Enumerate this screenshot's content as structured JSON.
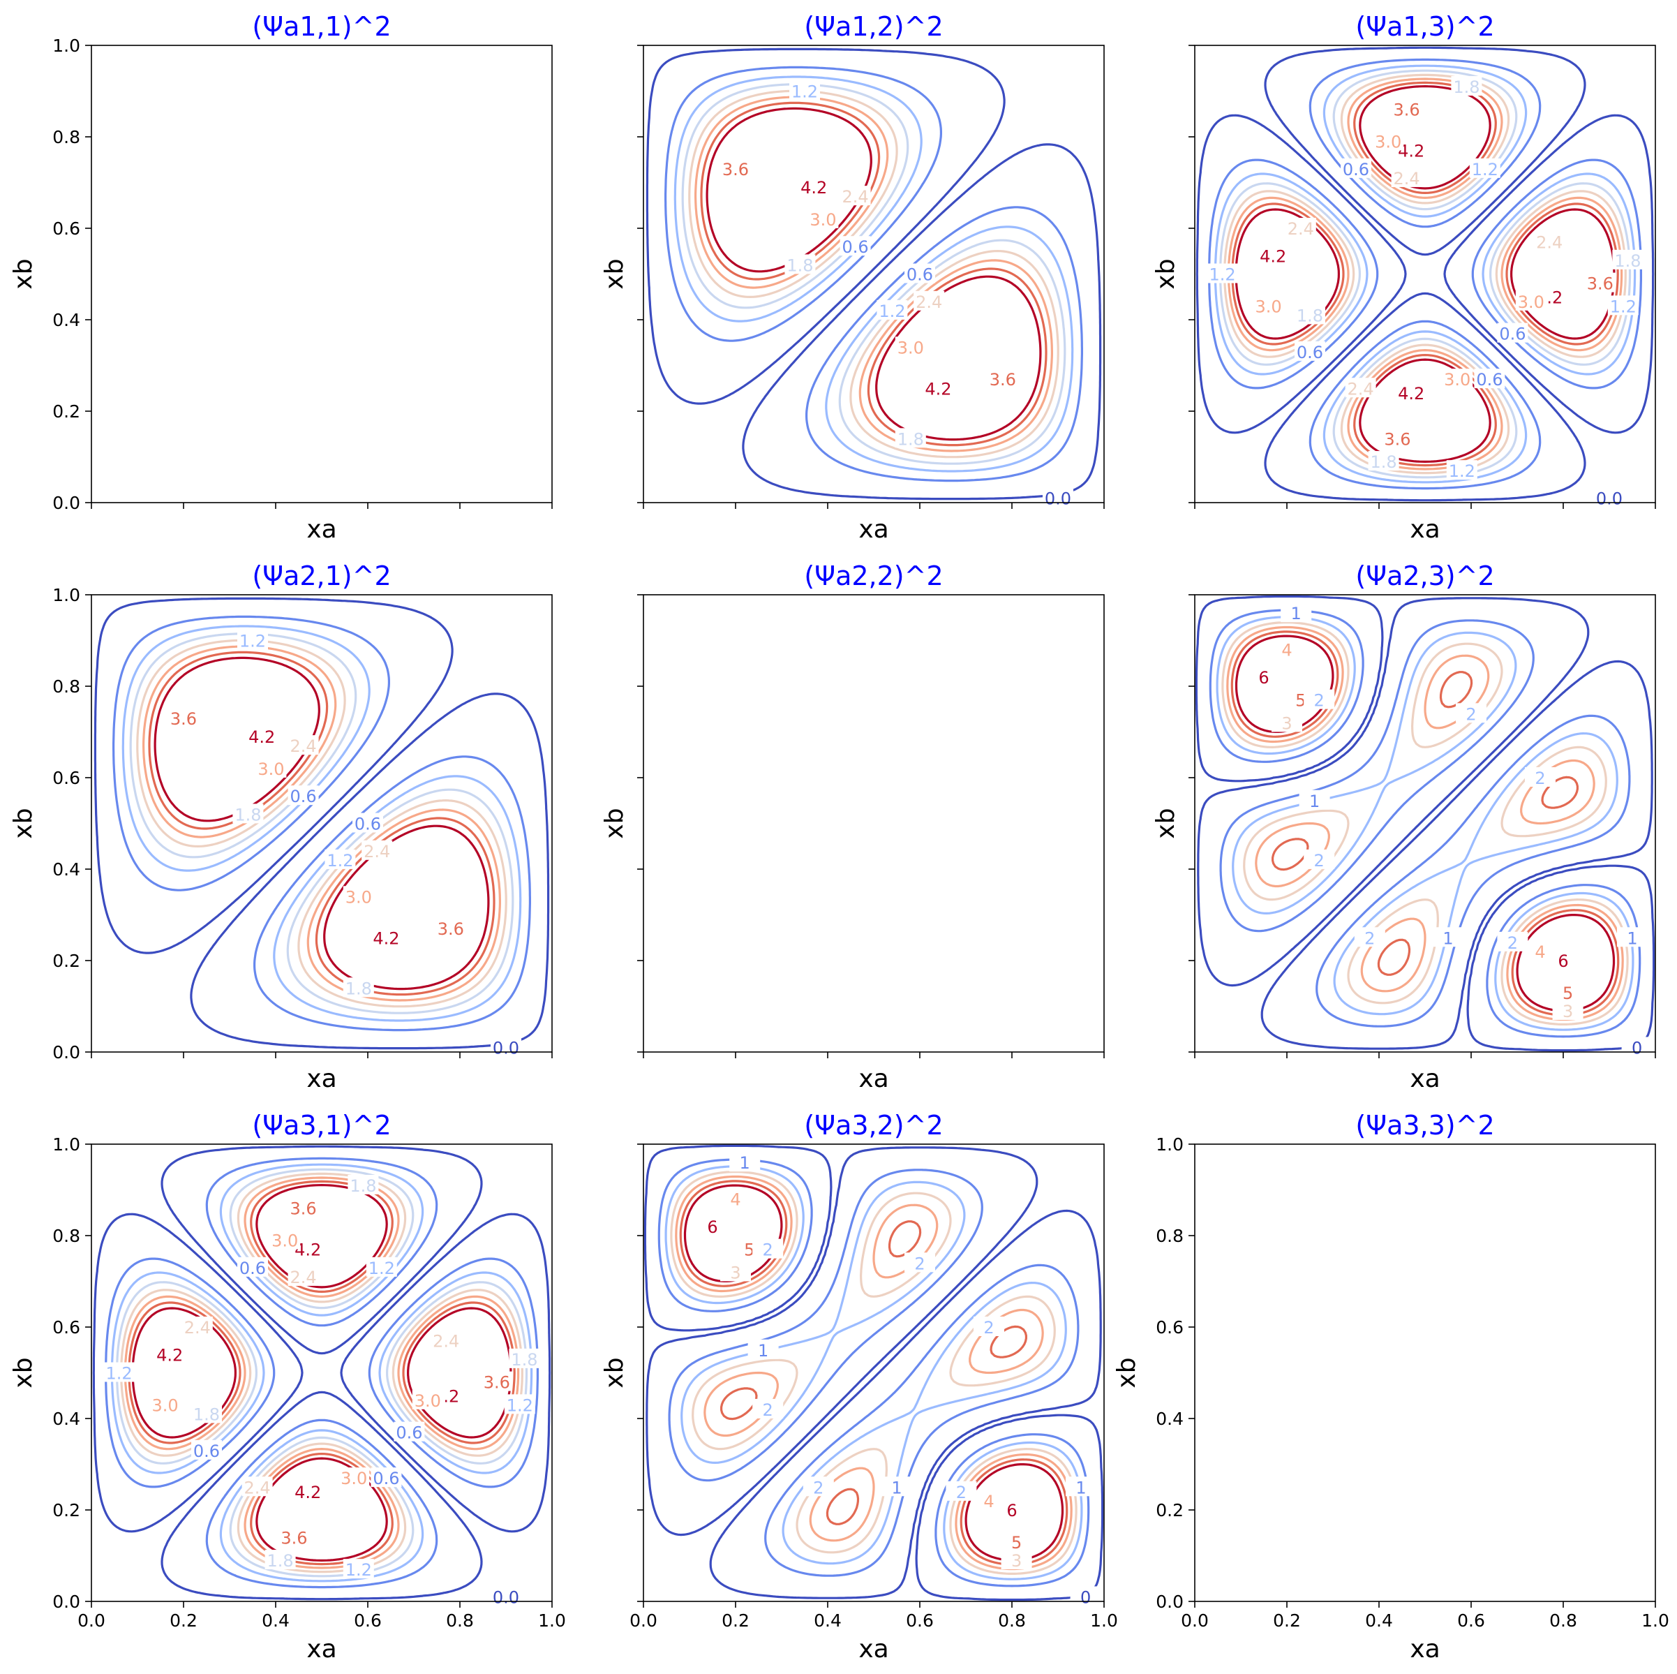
{
  "colors": {
    "title": "#0000ff",
    "level_palette": [
      "#3b4cc0",
      "#6788ee",
      "#9abbff",
      "#c9d7f0",
      "#edd1c2",
      "#f7a889",
      "#e26952",
      "#b40426"
    ]
  },
  "chart_data": [
    {
      "type": "contour",
      "title": "(Ψa1,1)^2",
      "xlabel": "xa",
      "ylabel": "xb",
      "xlim": [
        0,
        1
      ],
      "ylim": [
        0,
        1
      ],
      "xticks": [
        "0.0",
        "0.2",
        "0.4",
        "0.6",
        "0.8",
        "1.0"
      ],
      "yticks": [
        "0.0",
        "0.2",
        "0.4",
        "0.6",
        "0.8",
        "1.0"
      ],
      "show_xticklabels": false,
      "show_yticklabels": true,
      "pair": [
        1,
        1
      ],
      "levels": [],
      "labels": []
    },
    {
      "type": "contour",
      "title": "(Ψa1,2)^2",
      "xlabel": "xa",
      "ylabel": "xb",
      "xlim": [
        0,
        1
      ],
      "ylim": [
        0,
        1
      ],
      "xticks": [
        "0.0",
        "0.2",
        "0.4",
        "0.6",
        "0.8",
        "1.0"
      ],
      "yticks": [
        "0.0",
        "0.2",
        "0.4",
        "0.6",
        "0.8",
        "1.0"
      ],
      "show_xticklabels": false,
      "show_yticklabels": false,
      "pair": [
        1,
        2
      ],
      "levels": [
        0.0,
        0.6,
        1.2,
        1.8,
        2.4,
        3.0,
        3.6,
        4.2
      ],
      "labels": [
        {
          "text": "1.2",
          "x": 0.35,
          "y": 0.9,
          "level": 1.2
        },
        {
          "text": "3.6",
          "x": 0.2,
          "y": 0.73,
          "level": 3.6
        },
        {
          "text": "4.2",
          "x": 0.37,
          "y": 0.69,
          "level": 4.2
        },
        {
          "text": "3.0",
          "x": 0.39,
          "y": 0.62,
          "level": 3.0
        },
        {
          "text": "2.4",
          "x": 0.46,
          "y": 0.67,
          "level": 2.4
        },
        {
          "text": "1.8",
          "x": 0.34,
          "y": 0.52,
          "level": 1.8
        },
        {
          "text": "0.6",
          "x": 0.46,
          "y": 0.56,
          "level": 0.6
        },
        {
          "text": "0.6",
          "x": 0.6,
          "y": 0.5,
          "level": 0.6
        },
        {
          "text": "1.2",
          "x": 0.54,
          "y": 0.42,
          "level": 1.2
        },
        {
          "text": "2.4",
          "x": 0.62,
          "y": 0.44,
          "level": 2.4
        },
        {
          "text": "3.0",
          "x": 0.58,
          "y": 0.34,
          "level": 3.0
        },
        {
          "text": "4.2",
          "x": 0.64,
          "y": 0.25,
          "level": 4.2
        },
        {
          "text": "3.6",
          "x": 0.78,
          "y": 0.27,
          "level": 3.6
        },
        {
          "text": "1.8",
          "x": 0.58,
          "y": 0.14,
          "level": 1.8
        },
        {
          "text": "0.0",
          "x": 0.9,
          "y": 0.01,
          "level": 0.0
        }
      ]
    },
    {
      "type": "contour",
      "title": "(Ψa1,3)^2",
      "xlabel": "xa",
      "ylabel": "xb",
      "xlim": [
        0,
        1
      ],
      "ylim": [
        0,
        1
      ],
      "xticks": [
        "0.0",
        "0.2",
        "0.4",
        "0.6",
        "0.8",
        "1.0"
      ],
      "yticks": [
        "0.0",
        "0.2",
        "0.4",
        "0.6",
        "0.8",
        "1.0"
      ],
      "show_xticklabels": false,
      "show_yticklabels": false,
      "pair": [
        1,
        3
      ],
      "levels": [
        0.0,
        0.6,
        1.2,
        1.8,
        2.4,
        3.0,
        3.6,
        4.2
      ],
      "labels": [
        {
          "text": "1.8",
          "x": 0.59,
          "y": 0.91,
          "level": 1.8
        },
        {
          "text": "3.6",
          "x": 0.46,
          "y": 0.86,
          "level": 3.6
        },
        {
          "text": "4.2",
          "x": 0.47,
          "y": 0.77,
          "level": 4.2
        },
        {
          "text": "3.0",
          "x": 0.42,
          "y": 0.79,
          "level": 3.0
        },
        {
          "text": "2.4",
          "x": 0.46,
          "y": 0.71,
          "level": 2.4
        },
        {
          "text": "1.2",
          "x": 0.63,
          "y": 0.73,
          "level": 1.2
        },
        {
          "text": "0.6",
          "x": 0.35,
          "y": 0.73,
          "level": 0.6
        },
        {
          "text": "1.2",
          "x": 0.06,
          "y": 0.5,
          "level": 1.2
        },
        {
          "text": "4.2",
          "x": 0.17,
          "y": 0.54,
          "level": 4.2
        },
        {
          "text": "2.4",
          "x": 0.23,
          "y": 0.6,
          "level": 2.4
        },
        {
          "text": "3.0",
          "x": 0.16,
          "y": 0.43,
          "level": 3.0
        },
        {
          "text": "1.8",
          "x": 0.25,
          "y": 0.41,
          "level": 1.8
        },
        {
          "text": "0.6",
          "x": 0.25,
          "y": 0.33,
          "level": 0.6
        },
        {
          "text": "2.4",
          "x": 0.77,
          "y": 0.57,
          "level": 2.4
        },
        {
          "text": "3.6",
          "x": 0.88,
          "y": 0.48,
          "level": 3.6
        },
        {
          "text": "4.2",
          "x": 0.77,
          "y": 0.45,
          "level": 4.2
        },
        {
          "text": "3.0",
          "x": 0.73,
          "y": 0.44,
          "level": 3.0
        },
        {
          "text": "1.8",
          "x": 0.94,
          "y": 0.53,
          "level": 1.8
        },
        {
          "text": "1.2",
          "x": 0.93,
          "y": 0.43,
          "level": 1.2
        },
        {
          "text": "0.6",
          "x": 0.69,
          "y": 0.37,
          "level": 0.6
        },
        {
          "text": "0.6",
          "x": 0.64,
          "y": 0.27,
          "level": 0.6
        },
        {
          "text": "3.0",
          "x": 0.57,
          "y": 0.27,
          "level": 3.0
        },
        {
          "text": "2.4",
          "x": 0.36,
          "y": 0.25,
          "level": 2.4
        },
        {
          "text": "4.2",
          "x": 0.47,
          "y": 0.24,
          "level": 4.2
        },
        {
          "text": "3.6",
          "x": 0.44,
          "y": 0.14,
          "level": 3.6
        },
        {
          "text": "1.8",
          "x": 0.41,
          "y": 0.09,
          "level": 1.8
        },
        {
          "text": "1.2",
          "x": 0.58,
          "y": 0.07,
          "level": 1.2
        },
        {
          "text": "0.0",
          "x": 0.9,
          "y": 0.01,
          "level": 0.0
        }
      ]
    },
    {
      "type": "contour",
      "title": "(Ψa2,1)^2",
      "xlabel": "xa",
      "ylabel": "xb",
      "xlim": [
        0,
        1
      ],
      "ylim": [
        0,
        1
      ],
      "xticks": [
        "0.0",
        "0.2",
        "0.4",
        "0.6",
        "0.8",
        "1.0"
      ],
      "yticks": [
        "0.0",
        "0.2",
        "0.4",
        "0.6",
        "0.8",
        "1.0"
      ],
      "show_xticklabels": false,
      "show_yticklabels": true,
      "pair": [
        2,
        1
      ],
      "levels": [
        0.0,
        0.6,
        1.2,
        1.8,
        2.4,
        3.0,
        3.6,
        4.2
      ],
      "labels": [
        {
          "text": "1.2",
          "x": 0.35,
          "y": 0.9,
          "level": 1.2
        },
        {
          "text": "3.6",
          "x": 0.2,
          "y": 0.73,
          "level": 3.6
        },
        {
          "text": "4.2",
          "x": 0.37,
          "y": 0.69,
          "level": 4.2
        },
        {
          "text": "3.0",
          "x": 0.39,
          "y": 0.62,
          "level": 3.0
        },
        {
          "text": "2.4",
          "x": 0.46,
          "y": 0.67,
          "level": 2.4
        },
        {
          "text": "1.8",
          "x": 0.34,
          "y": 0.52,
          "level": 1.8
        },
        {
          "text": "0.6",
          "x": 0.46,
          "y": 0.56,
          "level": 0.6
        },
        {
          "text": "0.6",
          "x": 0.6,
          "y": 0.5,
          "level": 0.6
        },
        {
          "text": "1.2",
          "x": 0.54,
          "y": 0.42,
          "level": 1.2
        },
        {
          "text": "2.4",
          "x": 0.62,
          "y": 0.44,
          "level": 2.4
        },
        {
          "text": "3.0",
          "x": 0.58,
          "y": 0.34,
          "level": 3.0
        },
        {
          "text": "4.2",
          "x": 0.64,
          "y": 0.25,
          "level": 4.2
        },
        {
          "text": "3.6",
          "x": 0.78,
          "y": 0.27,
          "level": 3.6
        },
        {
          "text": "1.8",
          "x": 0.58,
          "y": 0.14,
          "level": 1.8
        },
        {
          "text": "0.0",
          "x": 0.9,
          "y": 0.01,
          "level": 0.0
        }
      ]
    },
    {
      "type": "contour",
      "title": "(Ψa2,2)^2",
      "xlabel": "xa",
      "ylabel": "xb",
      "xlim": [
        0,
        1
      ],
      "ylim": [
        0,
        1
      ],
      "xticks": [
        "0.0",
        "0.2",
        "0.4",
        "0.6",
        "0.8",
        "1.0"
      ],
      "yticks": [
        "0.0",
        "0.2",
        "0.4",
        "0.6",
        "0.8",
        "1.0"
      ],
      "show_xticklabels": false,
      "show_yticklabels": false,
      "pair": [
        2,
        2
      ],
      "levels": [],
      "labels": []
    },
    {
      "type": "contour",
      "title": "(Ψa2,3)^2",
      "xlabel": "xa",
      "ylabel": "xb",
      "xlim": [
        0,
        1
      ],
      "ylim": [
        0,
        1
      ],
      "xticks": [
        "0.0",
        "0.2",
        "0.4",
        "0.6",
        "0.8",
        "1.0"
      ],
      "yticks": [
        "0.0",
        "0.2",
        "0.4",
        "0.6",
        "0.8",
        "1.0"
      ],
      "show_xticklabels": false,
      "show_yticklabels": false,
      "pair": [
        2,
        3
      ],
      "levels": [
        0,
        1,
        2,
        3,
        4,
        5,
        6
      ],
      "labels": [
        {
          "text": "1",
          "x": 0.22,
          "y": 0.96,
          "level": 1
        },
        {
          "text": "4",
          "x": 0.2,
          "y": 0.88,
          "level": 4
        },
        {
          "text": "6",
          "x": 0.15,
          "y": 0.82,
          "level": 6
        },
        {
          "text": "5",
          "x": 0.23,
          "y": 0.77,
          "level": 5
        },
        {
          "text": "3",
          "x": 0.2,
          "y": 0.72,
          "level": 3
        },
        {
          "text": "2",
          "x": 0.27,
          "y": 0.77,
          "level": 2
        },
        {
          "text": "2",
          "x": 0.6,
          "y": 0.74,
          "level": 2
        },
        {
          "text": "1",
          "x": 0.26,
          "y": 0.55,
          "level": 1
        },
        {
          "text": "2",
          "x": 0.27,
          "y": 0.42,
          "level": 2
        },
        {
          "text": "2",
          "x": 0.75,
          "y": 0.6,
          "level": 2
        },
        {
          "text": "2",
          "x": 0.38,
          "y": 0.25,
          "level": 2
        },
        {
          "text": "1",
          "x": 0.55,
          "y": 0.25,
          "level": 1
        },
        {
          "text": "2",
          "x": 0.69,
          "y": 0.24,
          "level": 2
        },
        {
          "text": "4",
          "x": 0.75,
          "y": 0.22,
          "level": 4
        },
        {
          "text": "6",
          "x": 0.8,
          "y": 0.2,
          "level": 6
        },
        {
          "text": "5",
          "x": 0.81,
          "y": 0.13,
          "level": 5
        },
        {
          "text": "3",
          "x": 0.81,
          "y": 0.09,
          "level": 3
        },
        {
          "text": "1",
          "x": 0.95,
          "y": 0.25,
          "level": 1
        },
        {
          "text": "0",
          "x": 0.96,
          "y": 0.01,
          "level": 0
        }
      ]
    },
    {
      "type": "contour",
      "title": "(Ψa3,1)^2",
      "xlabel": "xa",
      "ylabel": "xb",
      "xlim": [
        0,
        1
      ],
      "ylim": [
        0,
        1
      ],
      "xticks": [
        "0.0",
        "0.2",
        "0.4",
        "0.6",
        "0.8",
        "1.0"
      ],
      "yticks": [
        "0.0",
        "0.2",
        "0.4",
        "0.6",
        "0.8",
        "1.0"
      ],
      "show_xticklabels": true,
      "show_yticklabels": true,
      "pair": [
        3,
        1
      ],
      "levels": [
        0.0,
        0.6,
        1.2,
        1.8,
        2.4,
        3.0,
        3.6,
        4.2
      ],
      "labels": [
        {
          "text": "1.8",
          "x": 0.59,
          "y": 0.91,
          "level": 1.8
        },
        {
          "text": "3.6",
          "x": 0.46,
          "y": 0.86,
          "level": 3.6
        },
        {
          "text": "4.2",
          "x": 0.47,
          "y": 0.77,
          "level": 4.2
        },
        {
          "text": "3.0",
          "x": 0.42,
          "y": 0.79,
          "level": 3.0
        },
        {
          "text": "2.4",
          "x": 0.46,
          "y": 0.71,
          "level": 2.4
        },
        {
          "text": "1.2",
          "x": 0.63,
          "y": 0.73,
          "level": 1.2
        },
        {
          "text": "0.6",
          "x": 0.35,
          "y": 0.73,
          "level": 0.6
        },
        {
          "text": "1.2",
          "x": 0.06,
          "y": 0.5,
          "level": 1.2
        },
        {
          "text": "4.2",
          "x": 0.17,
          "y": 0.54,
          "level": 4.2
        },
        {
          "text": "2.4",
          "x": 0.23,
          "y": 0.6,
          "level": 2.4
        },
        {
          "text": "3.0",
          "x": 0.16,
          "y": 0.43,
          "level": 3.0
        },
        {
          "text": "1.8",
          "x": 0.25,
          "y": 0.41,
          "level": 1.8
        },
        {
          "text": "0.6",
          "x": 0.25,
          "y": 0.33,
          "level": 0.6
        },
        {
          "text": "2.4",
          "x": 0.77,
          "y": 0.57,
          "level": 2.4
        },
        {
          "text": "3.6",
          "x": 0.88,
          "y": 0.48,
          "level": 3.6
        },
        {
          "text": "4.2",
          "x": 0.77,
          "y": 0.45,
          "level": 4.2
        },
        {
          "text": "3.0",
          "x": 0.73,
          "y": 0.44,
          "level": 3.0
        },
        {
          "text": "1.8",
          "x": 0.94,
          "y": 0.53,
          "level": 1.8
        },
        {
          "text": "1.2",
          "x": 0.93,
          "y": 0.43,
          "level": 1.2
        },
        {
          "text": "0.6",
          "x": 0.69,
          "y": 0.37,
          "level": 0.6
        },
        {
          "text": "0.6",
          "x": 0.64,
          "y": 0.27,
          "level": 0.6
        },
        {
          "text": "3.0",
          "x": 0.57,
          "y": 0.27,
          "level": 3.0
        },
        {
          "text": "2.4",
          "x": 0.36,
          "y": 0.25,
          "level": 2.4
        },
        {
          "text": "4.2",
          "x": 0.47,
          "y": 0.24,
          "level": 4.2
        },
        {
          "text": "3.6",
          "x": 0.44,
          "y": 0.14,
          "level": 3.6
        },
        {
          "text": "1.8",
          "x": 0.41,
          "y": 0.09,
          "level": 1.8
        },
        {
          "text": "1.2",
          "x": 0.58,
          "y": 0.07,
          "level": 1.2
        },
        {
          "text": "0.0",
          "x": 0.9,
          "y": 0.01,
          "level": 0.0
        }
      ]
    },
    {
      "type": "contour",
      "title": "(Ψa3,2)^2",
      "xlabel": "xa",
      "ylabel": "xb",
      "xlim": [
        0,
        1
      ],
      "ylim": [
        0,
        1
      ],
      "xticks": [
        "0.0",
        "0.2",
        "0.4",
        "0.6",
        "0.8",
        "1.0"
      ],
      "yticks": [
        "0.0",
        "0.2",
        "0.4",
        "0.6",
        "0.8",
        "1.0"
      ],
      "show_xticklabels": true,
      "show_yticklabels": false,
      "pair": [
        3,
        2
      ],
      "levels": [
        0,
        1,
        2,
        3,
        4,
        5,
        6
      ],
      "labels": [
        {
          "text": "1",
          "x": 0.22,
          "y": 0.96,
          "level": 1
        },
        {
          "text": "4",
          "x": 0.2,
          "y": 0.88,
          "level": 4
        },
        {
          "text": "6",
          "x": 0.15,
          "y": 0.82,
          "level": 6
        },
        {
          "text": "5",
          "x": 0.23,
          "y": 0.77,
          "level": 5
        },
        {
          "text": "3",
          "x": 0.2,
          "y": 0.72,
          "level": 3
        },
        {
          "text": "2",
          "x": 0.27,
          "y": 0.77,
          "level": 2
        },
        {
          "text": "2",
          "x": 0.6,
          "y": 0.74,
          "level": 2
        },
        {
          "text": "1",
          "x": 0.26,
          "y": 0.55,
          "level": 1
        },
        {
          "text": "2",
          "x": 0.27,
          "y": 0.42,
          "level": 2
        },
        {
          "text": "2",
          "x": 0.75,
          "y": 0.6,
          "level": 2
        },
        {
          "text": "2",
          "x": 0.38,
          "y": 0.25,
          "level": 2
        },
        {
          "text": "1",
          "x": 0.55,
          "y": 0.25,
          "level": 1
        },
        {
          "text": "2",
          "x": 0.69,
          "y": 0.24,
          "level": 2
        },
        {
          "text": "4",
          "x": 0.75,
          "y": 0.22,
          "level": 4
        },
        {
          "text": "6",
          "x": 0.8,
          "y": 0.2,
          "level": 6
        },
        {
          "text": "5",
          "x": 0.81,
          "y": 0.13,
          "level": 5
        },
        {
          "text": "3",
          "x": 0.81,
          "y": 0.09,
          "level": 3
        },
        {
          "text": "1",
          "x": 0.95,
          "y": 0.25,
          "level": 1
        },
        {
          "text": "0",
          "x": 0.96,
          "y": 0.01,
          "level": 0
        }
      ]
    },
    {
      "type": "contour",
      "title": "(Ψa3,3)^2",
      "xlabel": "xa",
      "ylabel": "xb",
      "xlim": [
        0,
        1
      ],
      "ylim": [
        0,
        1
      ],
      "xticks": [
        "0.0",
        "0.2",
        "0.4",
        "0.6",
        "0.8",
        "1.0"
      ],
      "yticks": [
        "0.0",
        "0.2",
        "0.4",
        "0.6",
        "0.8",
        "1.0"
      ],
      "show_xticklabels": true,
      "show_yticklabels": true,
      "pair": [
        3,
        3
      ],
      "levels": [],
      "labels": []
    }
  ]
}
